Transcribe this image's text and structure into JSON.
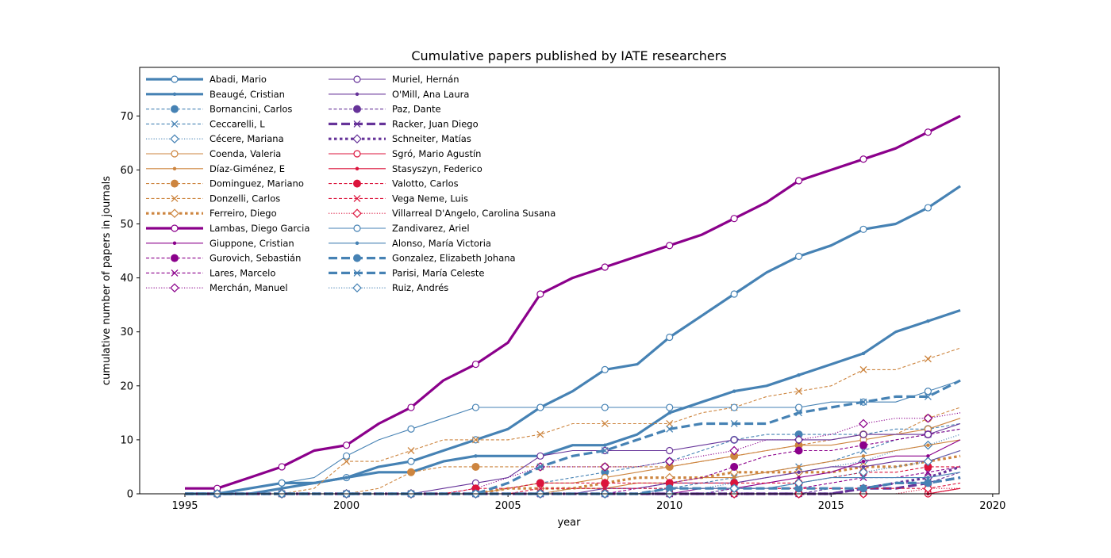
{
  "chart_data": {
    "type": "line",
    "title": "Cumulative papers published by IATE researchers",
    "xlabel": "year",
    "ylabel": "cumulative number of papers in journals",
    "xlim": [
      1993.6,
      2020.2
    ],
    "ylim": [
      0,
      79
    ],
    "xticks": [
      1995,
      2000,
      2005,
      2010,
      2015,
      2020
    ],
    "yticks": [
      0,
      10,
      20,
      30,
      40,
      50,
      60,
      70
    ],
    "grid": false,
    "legend_position": "top-left",
    "x": [
      1995,
      1996,
      1997,
      1998,
      1999,
      2000,
      2001,
      2002,
      2003,
      2004,
      2005,
      2006,
      2007,
      2008,
      2009,
      2010,
      2011,
      2012,
      2013,
      2014,
      2015,
      2016,
      2017,
      2018,
      2019
    ],
    "series": [
      {
        "name": "Abadi, Mario",
        "color": "#4682b4",
        "dash": "solid",
        "width": "thick",
        "marker": "circle-open",
        "values": [
          0,
          0,
          1,
          2,
          2,
          3,
          5,
          6,
          8,
          10,
          12,
          16,
          19,
          23,
          24,
          29,
          33,
          37,
          41,
          44,
          46,
          49,
          50,
          53,
          57
        ]
      },
      {
        "name": "Beaugé, Cristian",
        "color": "#4682b4",
        "dash": "solid",
        "width": "thick",
        "marker": "dot",
        "values": [
          0,
          0,
          0,
          1,
          2,
          3,
          4,
          4,
          6,
          7,
          7,
          7,
          9,
          9,
          11,
          15,
          17,
          19,
          20,
          22,
          24,
          26,
          30,
          32,
          34
        ]
      },
      {
        "name": "Bornancini, Carlos",
        "color": "#4682b4",
        "dash": "dashed",
        "width": "thin",
        "marker": "circle-filled",
        "values": [
          0,
          0,
          0,
          0,
          0,
          0,
          0,
          0,
          0,
          0,
          1,
          2,
          3,
          4,
          5,
          6,
          8,
          10,
          11,
          11,
          11,
          11,
          12,
          12,
          13
        ]
      },
      {
        "name": "Ceccarelli, L",
        "color": "#4682b4",
        "dash": "dashed",
        "width": "thin",
        "marker": "x",
        "values": [
          0,
          0,
          0,
          0,
          0,
          0,
          0,
          0,
          0,
          0,
          0,
          0,
          1,
          1,
          1,
          1,
          2,
          3,
          4,
          5,
          6,
          8,
          10,
          11,
          12
        ]
      },
      {
        "name": "Cécere, Mariana",
        "color": "#4682b4",
        "dash": "dotted",
        "width": "thin",
        "marker": "diamond-open",
        "values": [
          0,
          0,
          0,
          0,
          0,
          0,
          0,
          0,
          0,
          0,
          0,
          0,
          0,
          0,
          0,
          1,
          1,
          2,
          3,
          4,
          5,
          6,
          8,
          9,
          11
        ]
      },
      {
        "name": "Coenda, Valeria",
        "color": "#cd853f",
        "dash": "solid",
        "width": "thin",
        "marker": "circle-open",
        "values": [
          0,
          0,
          0,
          0,
          0,
          0,
          0,
          0,
          0,
          0,
          1,
          2,
          2,
          3,
          4,
          5,
          6,
          7,
          8,
          9,
          9,
          10,
          11,
          12,
          14
        ]
      },
      {
        "name": "Díaz-Giménez, E",
        "color": "#cd853f",
        "dash": "solid",
        "width": "thin",
        "marker": "dot",
        "values": [
          0,
          0,
          0,
          0,
          0,
          0,
          0,
          0,
          0,
          0,
          0,
          0,
          1,
          1,
          2,
          2,
          3,
          3,
          4,
          5,
          6,
          7,
          8,
          9,
          10
        ]
      },
      {
        "name": "Dominguez, Mariano",
        "color": "#cd853f",
        "dash": "dashed",
        "width": "thin",
        "marker": "circle-filled",
        "values": [
          0,
          0,
          0,
          0,
          0,
          0,
          1,
          4,
          5,
          5,
          5,
          5,
          5,
          5,
          5,
          5,
          6,
          7,
          8,
          9,
          10,
          11,
          11,
          14,
          16
        ]
      },
      {
        "name": "Donzelli, Carlos",
        "color": "#cd853f",
        "dash": "dashed",
        "width": "thin",
        "marker": "x",
        "values": [
          0,
          0,
          0,
          0,
          1,
          6,
          6,
          8,
          10,
          10,
          10,
          11,
          13,
          13,
          13,
          13,
          15,
          16,
          18,
          19,
          20,
          23,
          23,
          25,
          27
        ]
      },
      {
        "name": "Ferreiro, Diego",
        "color": "#cd853f",
        "dash": "dotted",
        "width": "thick",
        "marker": "diamond-open",
        "values": [
          0,
          0,
          0,
          0,
          0,
          0,
          0,
          0,
          0,
          0,
          1,
          1,
          1,
          2,
          3,
          3,
          3,
          4,
          4,
          4,
          4,
          5,
          5,
          6,
          7
        ]
      },
      {
        "name": "Lambas, Diego Garcia",
        "color": "#8b008b",
        "dash": "solid",
        "width": "thick",
        "marker": "circle-open",
        "values": [
          1,
          1,
          3,
          5,
          8,
          9,
          13,
          16,
          21,
          24,
          28,
          37,
          40,
          42,
          44,
          46,
          48,
          51,
          54,
          58,
          60,
          62,
          64,
          67,
          70
        ]
      },
      {
        "name": "Giuppone, Cristian",
        "color": "#8b008b",
        "dash": "solid",
        "width": "thin",
        "marker": "dot",
        "values": [
          0,
          0,
          0,
          0,
          0,
          0,
          0,
          0,
          0,
          0,
          0,
          0,
          0,
          0,
          0,
          0,
          1,
          1,
          2,
          3,
          4,
          6,
          7,
          7,
          10
        ]
      },
      {
        "name": "Gurovich, Sebastián",
        "color": "#8b008b",
        "dash": "dashed",
        "width": "thin",
        "marker": "circle-filled",
        "values": [
          0,
          0,
          0,
          0,
          0,
          0,
          0,
          0,
          0,
          0,
          0,
          0,
          0,
          0,
          1,
          2,
          3,
          5,
          7,
          8,
          8,
          9,
          10,
          11,
          12
        ]
      },
      {
        "name": "Lares, Marcelo",
        "color": "#8b008b",
        "dash": "dashed",
        "width": "thin",
        "marker": "x",
        "values": [
          0,
          0,
          0,
          0,
          0,
          0,
          0,
          0,
          0,
          0,
          0,
          0,
          0,
          0,
          0,
          0,
          0,
          1,
          1,
          1,
          2,
          3,
          3,
          4,
          5
        ]
      },
      {
        "name": "Merchán, Manuel",
        "color": "#8b008b",
        "dash": "dotted",
        "width": "thin",
        "marker": "diamond-open",
        "values": [
          0,
          0,
          0,
          0,
          0,
          0,
          0,
          0,
          0,
          1,
          3,
          5,
          5,
          5,
          5,
          6,
          7,
          8,
          10,
          10,
          11,
          13,
          14,
          14,
          15
        ]
      },
      {
        "name": "Muriel, Hernán",
        "color": "#663399",
        "dash": "solid",
        "width": "thin",
        "marker": "circle-open",
        "values": [
          0,
          0,
          0,
          0,
          0,
          0,
          0,
          0,
          1,
          2,
          3,
          7,
          8,
          8,
          8,
          8,
          9,
          10,
          10,
          10,
          10,
          11,
          11,
          11,
          13
        ]
      },
      {
        "name": "O'Mill, Ana Laura",
        "color": "#663399",
        "dash": "solid",
        "width": "thin",
        "marker": "dot",
        "values": [
          0,
          0,
          0,
          0,
          0,
          0,
          0,
          0,
          0,
          0,
          0,
          0,
          0,
          1,
          1,
          2,
          2,
          2,
          3,
          4,
          5,
          5,
          6,
          6,
          8
        ]
      },
      {
        "name": "Paz, Dante",
        "color": "#663399",
        "dash": "dashed",
        "width": "thin",
        "marker": "circle-filled",
        "values": [
          0,
          0,
          0,
          0,
          0,
          0,
          0,
          0,
          0,
          0,
          0,
          0,
          0,
          0,
          0,
          0,
          0,
          0,
          0,
          0,
          1,
          1,
          2,
          2,
          4
        ]
      },
      {
        "name": "Racker, Juan Diego",
        "color": "#663399",
        "dash": "dashed",
        "width": "thick",
        "marker": "x",
        "values": [
          0,
          0,
          0,
          0,
          0,
          0,
          0,
          0,
          0,
          0,
          0,
          0,
          0,
          0,
          0,
          0,
          0,
          0,
          0,
          0,
          0,
          1,
          1,
          2,
          3
        ]
      },
      {
        "name": "Schneiter, Matías",
        "color": "#663399",
        "dash": "dotted",
        "width": "thick",
        "marker": "diamond-open",
        "values": [
          0,
          0,
          0,
          0,
          0,
          0,
          0,
          0,
          0,
          0,
          0,
          0,
          0,
          0,
          0,
          0,
          0,
          0,
          0,
          0,
          0,
          1,
          2,
          3,
          5
        ]
      },
      {
        "name": "Sgró, Mario Agustín",
        "color": "#dc143c",
        "dash": "solid",
        "width": "thin",
        "marker": "circle-open",
        "values": [
          0,
          0,
          0,
          0,
          0,
          0,
          0,
          0,
          0,
          0,
          0,
          0,
          0,
          0,
          0,
          0,
          0,
          0,
          0,
          0,
          0,
          0,
          0,
          0,
          1
        ]
      },
      {
        "name": "Stasyszyn, Federico",
        "color": "#dc143c",
        "dash": "solid",
        "width": "thin",
        "marker": "dot",
        "values": [
          0,
          0,
          0,
          0,
          0,
          0,
          0,
          0,
          0,
          0,
          0,
          0,
          0,
          0,
          0,
          0,
          0,
          0,
          0,
          0,
          0,
          0,
          0,
          0,
          1
        ]
      },
      {
        "name": "Valotto, Carlos",
        "color": "#dc143c",
        "dash": "dashed",
        "width": "thin",
        "marker": "circle-filled",
        "values": [
          0,
          0,
          0,
          0,
          0,
          0,
          0,
          0,
          0,
          1,
          1,
          2,
          2,
          2,
          2,
          2,
          2,
          2,
          2,
          2,
          3,
          4,
          4,
          5,
          5
        ]
      },
      {
        "name": "Vega Neme, Luis",
        "color": "#dc143c",
        "dash": "dashed",
        "width": "thin",
        "marker": "x",
        "values": [
          0,
          0,
          0,
          0,
          0,
          0,
          0,
          0,
          0,
          0,
          0,
          1,
          1,
          1,
          1,
          1,
          1,
          1,
          1,
          1,
          1,
          1,
          1,
          1,
          2
        ]
      },
      {
        "name": "Villarreal D'Angelo, Carolina Susana",
        "color": "#dc143c",
        "dash": "dotted",
        "width": "thin",
        "marker": "diamond-open",
        "values": [
          0,
          0,
          0,
          0,
          0,
          0,
          0,
          0,
          0,
          0,
          0,
          0,
          0,
          0,
          0,
          0,
          0,
          0,
          0,
          0,
          0,
          0,
          0,
          1,
          1
        ]
      },
      {
        "name": "Zandivarez, Ariel",
        "color": "#4682b4",
        "dash": "solid",
        "width": "thin",
        "marker": "circle-open",
        "values": [
          0,
          0,
          1,
          2,
          3,
          7,
          10,
          12,
          14,
          16,
          16,
          16,
          16,
          16,
          16,
          16,
          16,
          16,
          16,
          16,
          17,
          17,
          17,
          19,
          21
        ]
      },
      {
        "name": "Alonso, María Victoria",
        "color": "#4682b4",
        "dash": "solid",
        "width": "thin",
        "marker": "dot",
        "values": [
          0,
          0,
          0,
          0,
          0,
          0,
          0,
          0,
          0,
          0,
          0,
          0,
          0,
          0,
          0,
          1,
          1,
          1,
          1,
          2,
          3,
          3,
          3,
          3,
          4
        ]
      },
      {
        "name": "Gonzalez, Elizabeth Johana",
        "color": "#4682b4",
        "dash": "dashed",
        "width": "thick",
        "marker": "circle-filled",
        "values": [
          0,
          0,
          0,
          0,
          0,
          0,
          0,
          0,
          0,
          0,
          0,
          0,
          0,
          0,
          0,
          1,
          1,
          1,
          1,
          1,
          1,
          1,
          2,
          2,
          3
        ]
      },
      {
        "name": "Parisi, María Celeste",
        "color": "#4682b4",
        "dash": "dashed",
        "width": "thick",
        "marker": "x",
        "values": [
          0,
          0,
          0,
          0,
          0,
          0,
          0,
          0,
          0,
          0,
          2,
          5,
          7,
          8,
          10,
          12,
          13,
          13,
          13,
          15,
          16,
          17,
          18,
          18,
          21
        ]
      },
      {
        "name": "Ruiz, Andrés",
        "color": "#4682b4",
        "dash": "dotted",
        "width": "thin",
        "marker": "diamond-open",
        "values": [
          0,
          0,
          0,
          0,
          0,
          0,
          0,
          0,
          0,
          0,
          0,
          0,
          0,
          0,
          0,
          0,
          0,
          1,
          1,
          2,
          3,
          4,
          5,
          6,
          8
        ]
      }
    ]
  }
}
